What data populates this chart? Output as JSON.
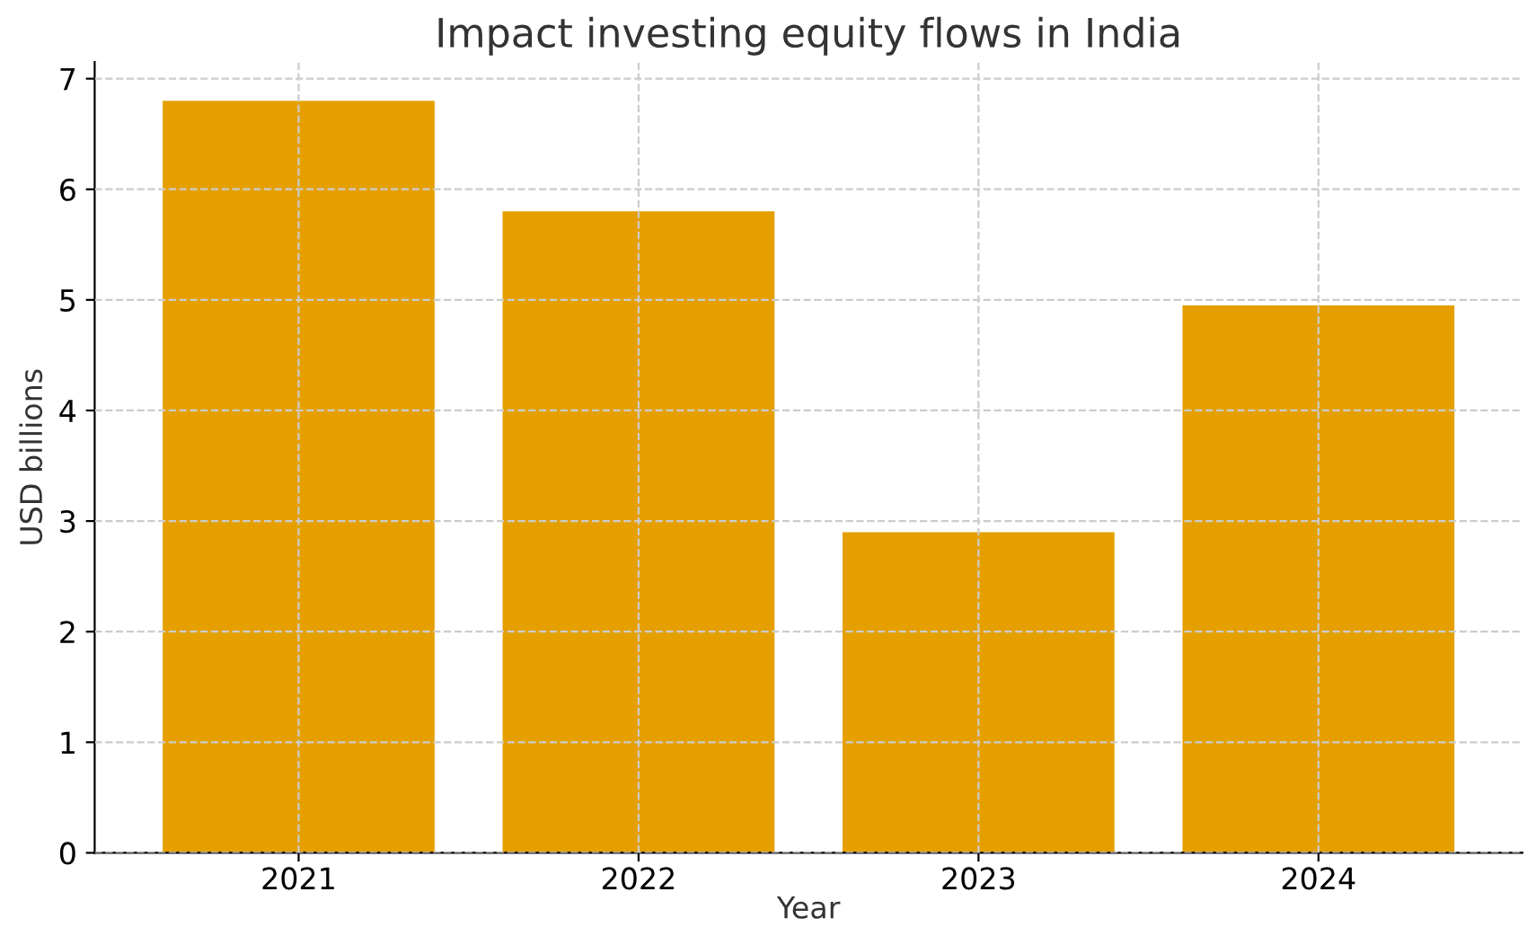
{
  "chart_data": {
    "type": "bar",
    "title": "Impact investing equity flows in India",
    "xlabel": "Year",
    "ylabel": "USD billions",
    "categories": [
      "2021",
      "2022",
      "2023",
      "2024"
    ],
    "values": [
      6.8,
      5.8,
      2.9,
      4.95
    ],
    "color": "#e5a000",
    "ylim": [
      0,
      7.15
    ],
    "yticks": [
      0,
      1,
      2,
      3,
      4,
      5,
      6,
      7
    ],
    "grid": true
  }
}
